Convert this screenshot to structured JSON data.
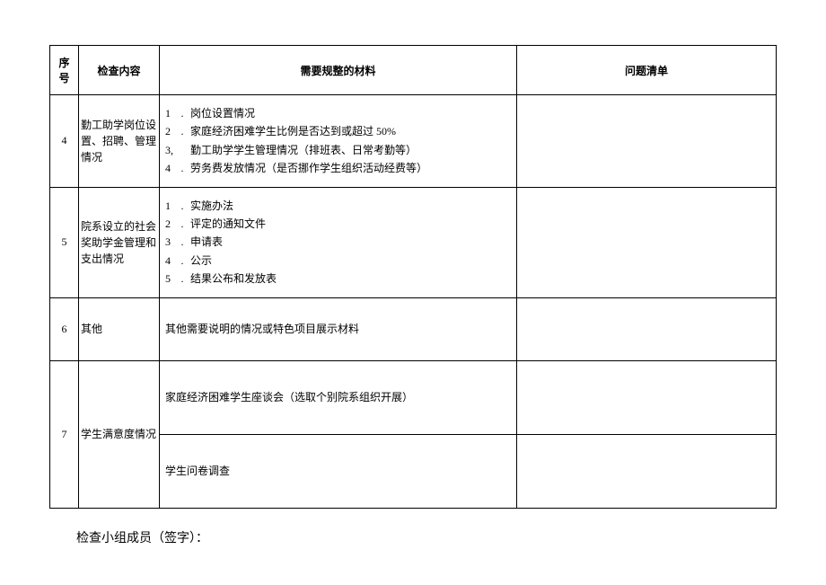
{
  "headers": {
    "seq": "序号",
    "content": "检查内容",
    "materials": "需要规整的材料",
    "issues": "问题清单"
  },
  "rows": {
    "r4": {
      "seq": "4",
      "content": "勤工助学岗位设置、招聘、管理情况",
      "items": [
        {
          "num": "1",
          "text": "岗位设置情况"
        },
        {
          "num": "2",
          "text": "家庭经济困难学生比例是否达到或超过 50%"
        },
        {
          "num": "3,",
          "text": "勤工助学学生管理情况（排班表、日常考勤等）"
        },
        {
          "num": "4",
          "text": "劳务费发放情况（是否挪作学生组织活动经费等）"
        }
      ]
    },
    "r5": {
      "seq": "5",
      "content": "院系设立的社会奖助学金管理和支出情况",
      "items": [
        {
          "num": "1",
          "text": "实施办法"
        },
        {
          "num": "2",
          "text": "评定的通知文件"
        },
        {
          "num": "3",
          "text": "申请表"
        },
        {
          "num": "4",
          "text": "公示"
        },
        {
          "num": "5",
          "text": "结果公布和发放表"
        }
      ]
    },
    "r6": {
      "seq": "6",
      "content": "其他",
      "materials": "其他需要说明的情况或特色项目展示材料"
    },
    "r7": {
      "seq": "7",
      "content": "学生满意度情况",
      "sub1": "家庭经济困难学生座谈会（选取个别院系组织开展）",
      "sub2": "学生问卷调查"
    }
  },
  "footer": "检查小组成员（签字）："
}
